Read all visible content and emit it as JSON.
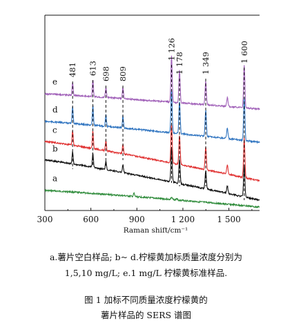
{
  "chart_data": {
    "type": "line",
    "title": "",
    "xlabel": "Raman shift/cm⁻¹",
    "ylabel": "",
    "xlim": [
      300,
      1700
    ],
    "xticks": [
      300,
      600,
      900,
      1200,
      1500
    ],
    "xtick_labels": [
      "300",
      "600",
      "900",
      "1 200",
      "1 500"
    ],
    "y_axis_values_shown": false,
    "grid": false,
    "series": [
      {
        "name": "a",
        "color": "#2e8b3a",
        "peaks": [
          [
            881,
            0.12
          ],
          [
            1126,
            0.08
          ],
          [
            1160,
            0.05
          ]
        ]
      },
      {
        "name": "b",
        "color": "#111111",
        "peaks": [
          [
            481,
            0.3
          ],
          [
            613,
            0.35
          ],
          [
            698,
            0.22
          ],
          [
            809,
            0.2
          ],
          [
            1126,
            0.85
          ],
          [
            1178,
            0.6
          ],
          [
            1349,
            0.45
          ],
          [
            1490,
            0.18
          ],
          [
            1600,
            0.8
          ]
        ]
      },
      {
        "name": "c",
        "color": "#e03030",
        "peaks": [
          [
            481,
            0.35
          ],
          [
            613,
            0.42
          ],
          [
            698,
            0.26
          ],
          [
            809,
            0.24
          ],
          [
            1126,
            0.95
          ],
          [
            1178,
            0.7
          ],
          [
            1349,
            0.55
          ],
          [
            1490,
            0.22
          ],
          [
            1600,
            0.95
          ]
        ]
      },
      {
        "name": "d",
        "color": "#2f74c0",
        "peaks": [
          [
            481,
            0.4
          ],
          [
            613,
            0.48
          ],
          [
            698,
            0.3
          ],
          [
            809,
            0.28
          ],
          [
            1126,
            1.05
          ],
          [
            1178,
            0.78
          ],
          [
            1349,
            0.62
          ],
          [
            1490,
            0.26
          ],
          [
            1600,
            1.05
          ]
        ]
      },
      {
        "name": "e",
        "color": "#a060b8",
        "peaks": [
          [
            481,
            0.32
          ],
          [
            613,
            0.42
          ],
          [
            698,
            0.26
          ],
          [
            809,
            0.28
          ],
          [
            1126,
            1.15
          ],
          [
            1178,
            0.8
          ],
          [
            1349,
            0.58
          ],
          [
            1490,
            0.22
          ],
          [
            1600,
            1.05
          ]
        ]
      }
    ],
    "annotations": [
      {
        "x": 481,
        "label": "481"
      },
      {
        "x": 613,
        "label": "613"
      },
      {
        "x": 698,
        "label": "698"
      },
      {
        "x": 809,
        "label": "809"
      },
      {
        "x": 1126,
        "label": "1 126"
      },
      {
        "x": 1178,
        "label": "1 178"
      },
      {
        "x": 1349,
        "label": "1 349"
      },
      {
        "x": 1600,
        "label": "1 600"
      }
    ]
  },
  "caption": {
    "note_line1": "a.薯片空白样品; b~ d.柠檬黄加标质量浓度分别为",
    "note_line2": "1,5,10 mg/L; e.1 mg/L 柠檬黄标准样品.",
    "title_line1": "图 1    加标不同质量浓度柠檬黄的",
    "title_line2": "薯片样品的 SERS 谱图"
  }
}
